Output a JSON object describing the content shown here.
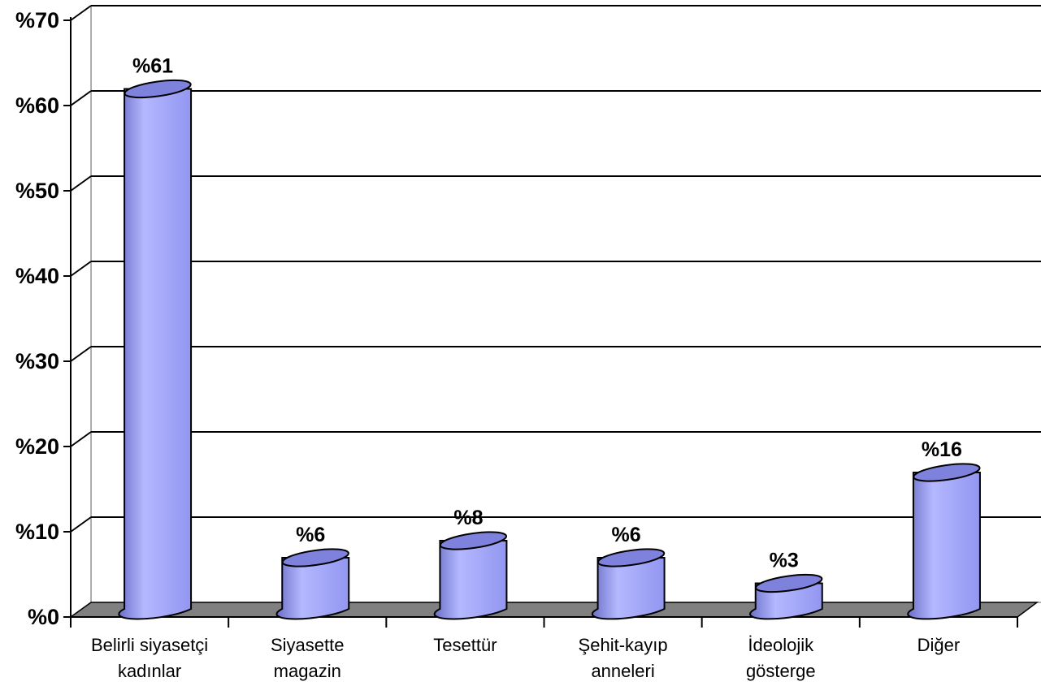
{
  "chart_data": {
    "type": "bar",
    "style": "3d-cylinder",
    "categories": [
      [
        "Belirli siyasetçi",
        "kadınlar"
      ],
      [
        "Siyasette",
        "magazin"
      ],
      [
        "Tesettür"
      ],
      [
        "Şehit-kayıp",
        "anneleri"
      ],
      [
        "İdeolojik",
        "gösterge"
      ],
      [
        "Diğer"
      ]
    ],
    "values": [
      61,
      6,
      8,
      6,
      3,
      16
    ],
    "data_labels": [
      "%61",
      "%6",
      "%8",
      "%6",
      "%3",
      "%16"
    ],
    "yticks": [
      "%0",
      "%10",
      "%20",
      "%30",
      "%40",
      "%50",
      "%60",
      "%70"
    ],
    "ylim": [
      0,
      70
    ],
    "grid": true,
    "colors": {
      "bar_side_light": "#b4b8ff",
      "bar_side_mid": "#9296f0",
      "bar_side_dark": "#6c70c8",
      "bar_top": "#7e82dc",
      "floor": "#808080",
      "wall": "#ffffff",
      "outline": "#000000"
    }
  }
}
